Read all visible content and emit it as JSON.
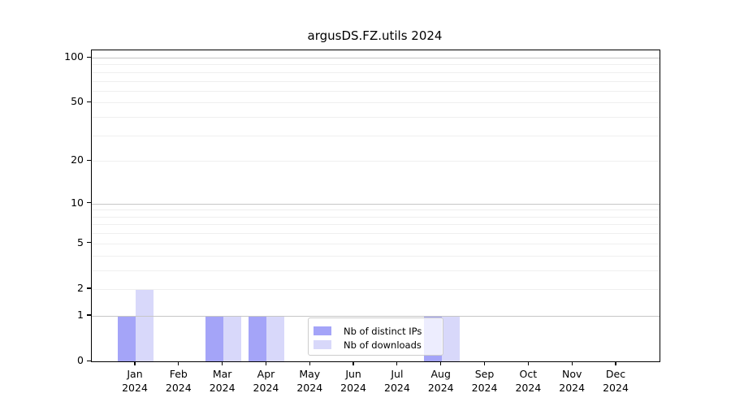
{
  "chart_data": {
    "type": "bar",
    "title": "argusDS.FZ.utils 2024",
    "categories": [
      "Jan 2024",
      "Feb 2024",
      "Mar 2024",
      "Apr 2024",
      "May 2024",
      "Jun 2024",
      "Jul 2024",
      "Aug 2024",
      "Sep 2024",
      "Oct 2024",
      "Nov 2024",
      "Dec 2024"
    ],
    "x_tick_labels": [
      {
        "month": "Jan",
        "year": "2024"
      },
      {
        "month": "Feb",
        "year": "2024"
      },
      {
        "month": "Mar",
        "year": "2024"
      },
      {
        "month": "Apr",
        "year": "2024"
      },
      {
        "month": "May",
        "year": "2024"
      },
      {
        "month": "Jun",
        "year": "2024"
      },
      {
        "month": "Jul",
        "year": "2024"
      },
      {
        "month": "Aug",
        "year": "2024"
      },
      {
        "month": "Sep",
        "year": "2024"
      },
      {
        "month": "Oct",
        "year": "2024"
      },
      {
        "month": "Nov",
        "year": "2024"
      },
      {
        "month": "Dec",
        "year": "2024"
      }
    ],
    "series": [
      {
        "name": "Nb of distinct IPs",
        "color": "#a4a4f8",
        "values": [
          1,
          0,
          1,
          1,
          0,
          0,
          0,
          1,
          0,
          0,
          0,
          0
        ]
      },
      {
        "name": "Nb of downloads",
        "color": "#d8d8fa",
        "values": [
          2,
          0,
          1,
          1,
          0,
          0,
          0,
          1,
          0,
          0,
          0,
          0
        ]
      }
    ],
    "y_axis": {
      "scale": "log1p",
      "tick_labels": [
        "100",
        "50",
        "20",
        "10",
        "5",
        "2",
        "1",
        "0"
      ],
      "tick_values": [
        100,
        50,
        20,
        10,
        5,
        2,
        1,
        0
      ],
      "ylim": [
        0,
        113
      ],
      "grid": true
    },
    "legend": {
      "position": "lower-center",
      "entries": [
        "Nb of distinct IPs",
        "Nb of downloads"
      ]
    },
    "colors": {
      "distinct_ips_bar": "#a4a4f8",
      "downloads_bar": "#d8d8fa",
      "decade_gridline": "#c6c6c6",
      "minor_gridline": "#efefef",
      "axis": "#000000",
      "legend_border": "#cccccc",
      "background": "#ffffff"
    }
  }
}
